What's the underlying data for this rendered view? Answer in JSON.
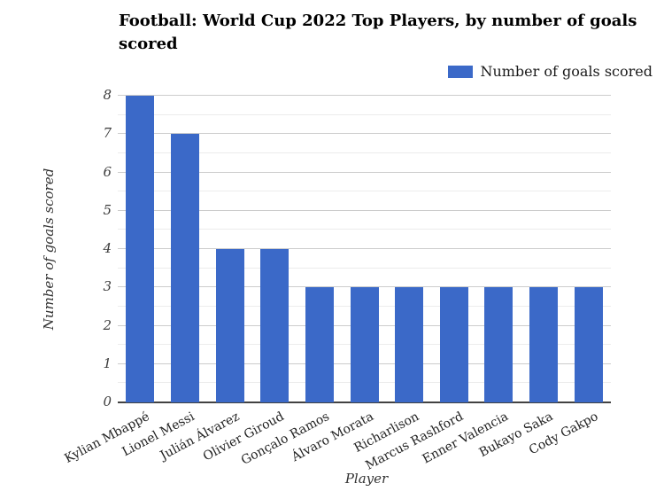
{
  "chart_data": {
    "type": "bar",
    "title": "Football: World Cup 2022 Top Players, by number of goals scored",
    "categories": [
      "Kylian Mbappé",
      "Lionel Messi",
      "Julián Álvarez",
      "Olivier Giroud",
      "Gonçalo Ramos",
      "Álvaro Morata",
      "Richarlison",
      "Marcus Rashford",
      "Enner Valencia",
      "Bukayo Saka",
      "Cody Gakpo"
    ],
    "values": [
      8,
      7,
      4,
      4,
      3,
      3,
      3,
      3,
      3,
      3,
      3
    ],
    "xlabel": "Player",
    "ylabel": "Number of goals scored",
    "legend_label": "Number of goals scored",
    "legend_position": "top-right",
    "ylim": [
      0,
      8
    ],
    "yticks": [
      0,
      1,
      2,
      3,
      4,
      5,
      6,
      7,
      8
    ],
    "minor_gridlines_every": 0.5,
    "grid_on": true,
    "colors": {
      "bar": "#3B69C8",
      "major_grid": "#cccccc",
      "minor_grid": "#ececec",
      "axis_line": "#424242",
      "tick_text": "#3c3c3c",
      "title_text": "#000000",
      "category_text": "#1f1f1f"
    }
  }
}
